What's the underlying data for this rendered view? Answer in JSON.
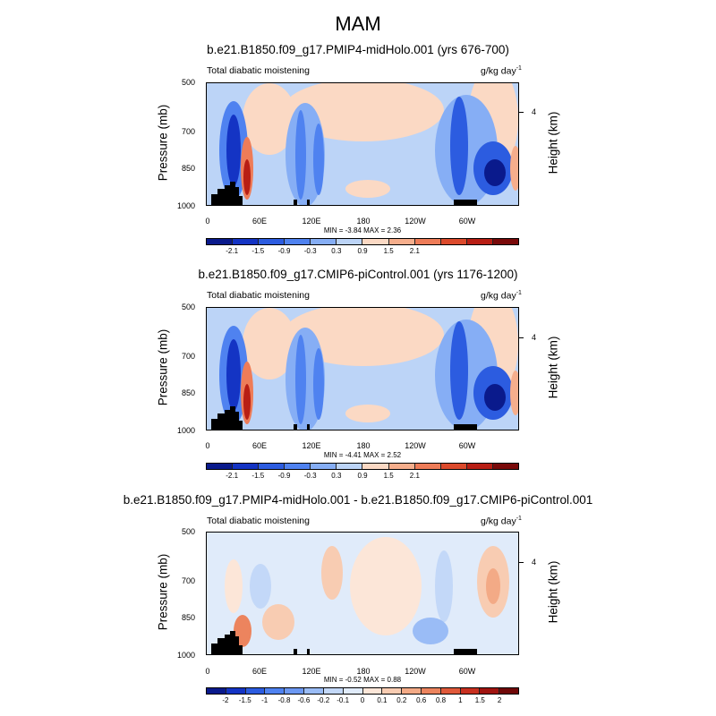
{
  "main_title": "MAM",
  "panels": [
    {
      "title": "b.e21.B1850.f09_g17.PMIP4-midHolo.001 (yrs 676-700)",
      "variable_label": "Total diabatic moistening",
      "units_base": "g/kg day",
      "units_exp": "-1",
      "minmax": "MIN = -3.84  MAX =  2.36",
      "levels": [
        "-2.1",
        "-1.5",
        "-0.9",
        "-0.3",
        "0.3",
        "0.9",
        "1.5",
        "2.1"
      ]
    },
    {
      "title": "b.e21.B1850.f09_g17.CMIP6-piControl.001 (yrs 1176-1200)",
      "variable_label": "Total diabatic moistening",
      "units_base": "g/kg day",
      "units_exp": "-1",
      "minmax": "MIN = -4.41  MAX =  2.52",
      "levels": [
        "-2.1",
        "-1.5",
        "-0.9",
        "-0.3",
        "0.3",
        "0.9",
        "1.5",
        "2.1"
      ]
    },
    {
      "title": "b.e21.B1850.f09_g17.PMIP4-midHolo.001 - b.e21.B1850.f09_g17.CMIP6-piControl.001",
      "variable_label": "Total diabatic moistening",
      "units_base": "g/kg day",
      "units_exp": "-1",
      "minmax": "MIN = -0.52  MAX =  0.88",
      "levels": [
        "-2",
        "-1.5",
        "-1",
        "-0.8",
        "-0.6",
        "-0.2",
        "-0.1",
        "0",
        "0.1",
        "0.2",
        "0.6",
        "0.8",
        "1",
        "1.5",
        "2"
      ]
    }
  ],
  "axes": {
    "ylabel": "Pressure (mb)",
    "ylabel_right": "Height (km)",
    "y_ticks": [
      "500",
      "700",
      "850",
      "1000"
    ],
    "x_ticks": [
      "0",
      "60E",
      "120E",
      "180",
      "120W",
      "60W"
    ],
    "height_ticks": [
      "4"
    ]
  },
  "colors": {
    "bar_12": [
      "#0a1a8c",
      "#1434c4",
      "#2c5ce0",
      "#4f82f0",
      "#86aef5",
      "#bcd4f7",
      "#fbd9c4",
      "#f6ae8c",
      "#ee7c58",
      "#dc4a2c",
      "#b81e14",
      "#7a0a0a"
    ],
    "bar_16": [
      "#0a1a8c",
      "#1434c4",
      "#2c5ce0",
      "#4f82f0",
      "#6c98f2",
      "#9abcf6",
      "#c3d8f8",
      "#e0ebfa",
      "#fce6d8",
      "#f8ccb2",
      "#f3aa86",
      "#ec845e",
      "#e0593a",
      "#c83020",
      "#a01410",
      "#700808"
    ]
  },
  "chart_data": [
    {
      "type": "heatmap",
      "title": "b.e21.B1850.f09_g17.PMIP4-midHolo.001 (yrs 676-700)",
      "xlabel": "",
      "ylabel": "Pressure (mb)",
      "y_right_label": "Height (km)",
      "x_ticks": [
        "0",
        "60E",
        "120E",
        "180",
        "120W",
        "60W"
      ],
      "y_ticks": [
        500,
        700,
        850,
        1000
      ],
      "min": -3.84,
      "max": 2.36,
      "contour_levels": [
        -2.1,
        -1.5,
        -0.9,
        -0.3,
        0.3,
        0.9,
        1.5,
        2.1
      ],
      "units": "g/kg day-1"
    },
    {
      "type": "heatmap",
      "title": "b.e21.B1850.f09_g17.CMIP6-piControl.001 (yrs 1176-1200)",
      "xlabel": "",
      "ylabel": "Pressure (mb)",
      "y_right_label": "Height (km)",
      "x_ticks": [
        "0",
        "60E",
        "120E",
        "180",
        "120W",
        "60W"
      ],
      "y_ticks": [
        500,
        700,
        850,
        1000
      ],
      "min": -4.41,
      "max": 2.52,
      "contour_levels": [
        -2.1,
        -1.5,
        -0.9,
        -0.3,
        0.3,
        0.9,
        1.5,
        2.1
      ],
      "units": "g/kg day-1"
    },
    {
      "type": "heatmap",
      "title": "b.e21.B1850.f09_g17.PMIP4-midHolo.001 - b.e21.B1850.f09_g17.CMIP6-piControl.001",
      "xlabel": "",
      "ylabel": "Pressure (mb)",
      "y_right_label": "Height (km)",
      "x_ticks": [
        "0",
        "60E",
        "120E",
        "180",
        "120W",
        "60W"
      ],
      "y_ticks": [
        500,
        700,
        850,
        1000
      ],
      "min": -0.52,
      "max": 0.88,
      "contour_levels": [
        -2,
        -1.5,
        -1,
        -0.8,
        -0.6,
        -0.2,
        -0.1,
        0,
        0.1,
        0.2,
        0.6,
        0.8,
        1,
        1.5,
        2
      ],
      "units": "g/kg day-1"
    }
  ]
}
